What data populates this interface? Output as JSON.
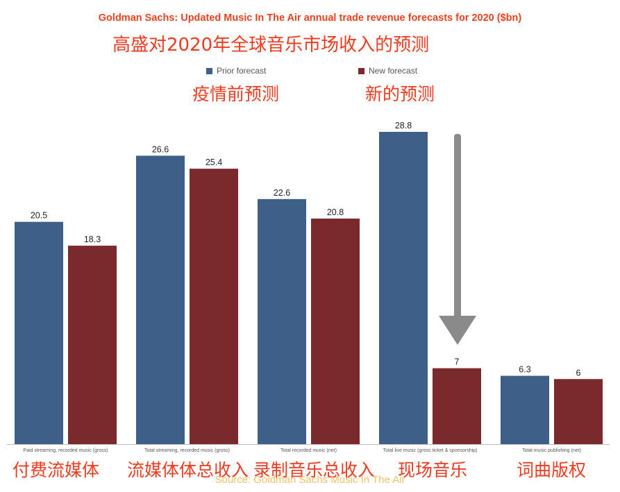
{
  "title": "Goldman Sachs: Updated Music In The Air annual trade revenue forecasts for 2020 ($bn)",
  "subtitle_cn": "高盛对2020年全球音乐市场收入的预测",
  "source": "Source: Goldman Sachs Music In The Air",
  "annotations": {
    "prior": "疫情前预测",
    "new": "新的预测",
    "cat0": "付费流媒体",
    "cat1": "流媒体体总收入",
    "cat2": "录制音乐总收入",
    "cat3": "现场音乐",
    "cat4": "词曲版权"
  },
  "colors": {
    "prior": "#3e5f87",
    "new": "#7a2a2c",
    "title": "#e8411f",
    "annotation": "#ee3a1f",
    "arrow": "#8a8a8a"
  },
  "chart_data": {
    "type": "bar",
    "title": "Goldman Sachs: Updated Music In The Air annual trade revenue forecasts for 2020 ($bn)",
    "categories": [
      "Paid streaming, recorded music (gross)",
      "Total streaming, recorded music (gross)",
      "Total recorded music (net)",
      "Total live music (gross ticket & sponsorship)",
      "Total music publishing (net)"
    ],
    "series": [
      {
        "name": "Prior forecast",
        "values": [
          20.5,
          26.6,
          22.6,
          28.8,
          6.3
        ]
      },
      {
        "name": "New forecast",
        "values": [
          18.3,
          25.4,
          20.8,
          7,
          6
        ]
      }
    ],
    "value_labels": [
      [
        "20.5",
        "26.6",
        "22.6",
        "28.8",
        "6.3"
      ],
      [
        "18.3",
        "25.4",
        "20.8",
        "7",
        "6"
      ]
    ],
    "ylim": [
      0,
      30
    ],
    "legend": "top-center",
    "grid": false
  }
}
